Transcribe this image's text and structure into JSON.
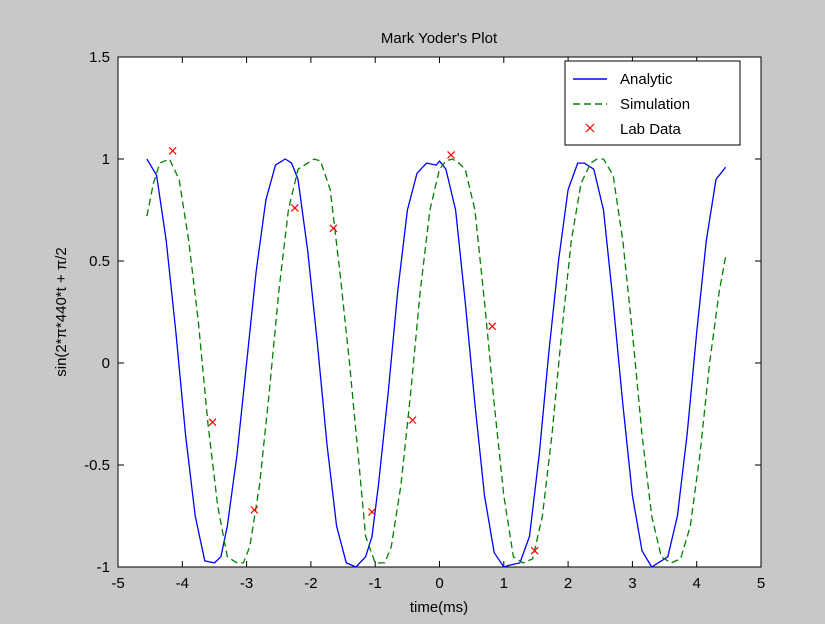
{
  "chart_data": {
    "type": "line",
    "title": "Mark Yoder's Plot",
    "xlabel": "time(ms)",
    "ylabel": "sin(2*π*440*t + π/2",
    "xlim": [
      -5,
      5
    ],
    "ylim": [
      -1,
      1.5
    ],
    "xticks": [
      -5,
      -4,
      -3,
      -2,
      -1,
      0,
      1,
      2,
      3,
      4,
      5
    ],
    "yticks": [
      -1,
      -0.5,
      0,
      0.5,
      1,
      1.5
    ],
    "grid": false,
    "legend_position": "top-right",
    "series": [
      {
        "name": "Analytic",
        "color": "#0000ff",
        "style": "solid",
        "x": [
          -4.55,
          -4.4,
          -4.25,
          -4.1,
          -3.95,
          -3.8,
          -3.65,
          -3.5,
          -3.4,
          -3.3,
          -3.15,
          -3.0,
          -2.85,
          -2.7,
          -2.55,
          -2.4,
          -2.3,
          -2.2,
          -2.05,
          -1.9,
          -1.75,
          -1.6,
          -1.45,
          -1.3,
          -1.15,
          -1.05,
          -0.95,
          -0.8,
          -0.65,
          -0.5,
          -0.35,
          -0.2,
          -0.05,
          0.0,
          0.1,
          0.25,
          0.4,
          0.55,
          0.7,
          0.85,
          1.0,
          1.1,
          1.25,
          1.4,
          1.55,
          1.7,
          1.85,
          2.0,
          2.15,
          2.25,
          2.4,
          2.55,
          2.7,
          2.85,
          3.0,
          3.15,
          3.3,
          3.4,
          3.55,
          3.7,
          3.85,
          4.0,
          4.15,
          4.3,
          4.45
        ],
        "y": [
          1.0,
          0.92,
          0.6,
          0.15,
          -0.35,
          -0.75,
          -0.97,
          -0.98,
          -0.95,
          -0.8,
          -0.45,
          0.0,
          0.45,
          0.8,
          0.97,
          1.0,
          0.98,
          0.9,
          0.55,
          0.1,
          -0.4,
          -0.8,
          -0.98,
          -1.0,
          -0.95,
          -0.85,
          -0.6,
          -0.15,
          0.35,
          0.75,
          0.93,
          0.98,
          0.97,
          0.99,
          0.95,
          0.75,
          0.3,
          -0.2,
          -0.65,
          -0.93,
          -1.0,
          -0.99,
          -0.98,
          -0.85,
          -0.45,
          0.05,
          0.5,
          0.85,
          0.98,
          0.98,
          0.95,
          0.75,
          0.3,
          -0.2,
          -0.65,
          -0.92,
          -1.0,
          -0.98,
          -0.95,
          -0.75,
          -0.35,
          0.15,
          0.6,
          0.9,
          0.96
        ]
      },
      {
        "name": "Simulation",
        "color": "#008000",
        "style": "dashed",
        "x": [
          -4.55,
          -4.45,
          -4.35,
          -4.2,
          -4.05,
          -3.9,
          -3.75,
          -3.6,
          -3.45,
          -3.3,
          -3.15,
          -3.05,
          -2.95,
          -2.8,
          -2.65,
          -2.5,
          -2.35,
          -2.2,
          -2.05,
          -1.95,
          -1.85,
          -1.7,
          -1.55,
          -1.4,
          -1.25,
          -1.15,
          -1.0,
          -0.85,
          -0.75,
          -0.6,
          -0.45,
          -0.3,
          -0.15,
          0.0,
          0.1,
          0.2,
          0.3,
          0.4,
          0.55,
          0.7,
          0.85,
          1.0,
          1.15,
          1.3,
          1.45,
          1.6,
          1.75,
          1.9,
          2.05,
          2.2,
          2.35,
          2.45,
          2.55,
          2.7,
          2.85,
          3.0,
          3.15,
          3.3,
          3.45,
          3.6,
          3.75,
          3.9,
          4.05,
          4.2,
          4.35,
          4.45
        ],
        "y": [
          0.72,
          0.88,
          0.98,
          1.0,
          0.9,
          0.6,
          0.2,
          -0.3,
          -0.7,
          -0.95,
          -0.98,
          -0.98,
          -0.9,
          -0.6,
          -0.15,
          0.35,
          0.75,
          0.95,
          0.98,
          1.0,
          0.99,
          0.85,
          0.45,
          0.0,
          -0.5,
          -0.85,
          -0.98,
          -0.98,
          -0.9,
          -0.6,
          -0.15,
          0.35,
          0.75,
          0.95,
          0.99,
          1.0,
          0.98,
          0.95,
          0.75,
          0.3,
          -0.2,
          -0.65,
          -0.95,
          -0.98,
          -0.96,
          -0.75,
          -0.35,
          0.15,
          0.6,
          0.88,
          0.98,
          1.0,
          1.0,
          0.92,
          0.6,
          0.15,
          -0.35,
          -0.75,
          -0.95,
          -0.98,
          -0.96,
          -0.8,
          -0.45,
          0.0,
          0.35,
          0.52
        ]
      },
      {
        "name": "Lab Data",
        "color": "#ff0000",
        "style": "markers-x",
        "x": [
          -4.15,
          -3.53,
          -2.88,
          -2.25,
          -1.65,
          -1.05,
          -0.42,
          0.18,
          0.82,
          1.48
        ],
        "y": [
          1.04,
          -0.29,
          -0.72,
          0.76,
          0.66,
          -0.73,
          -0.28,
          1.02,
          0.18,
          -0.92
        ]
      }
    ]
  }
}
